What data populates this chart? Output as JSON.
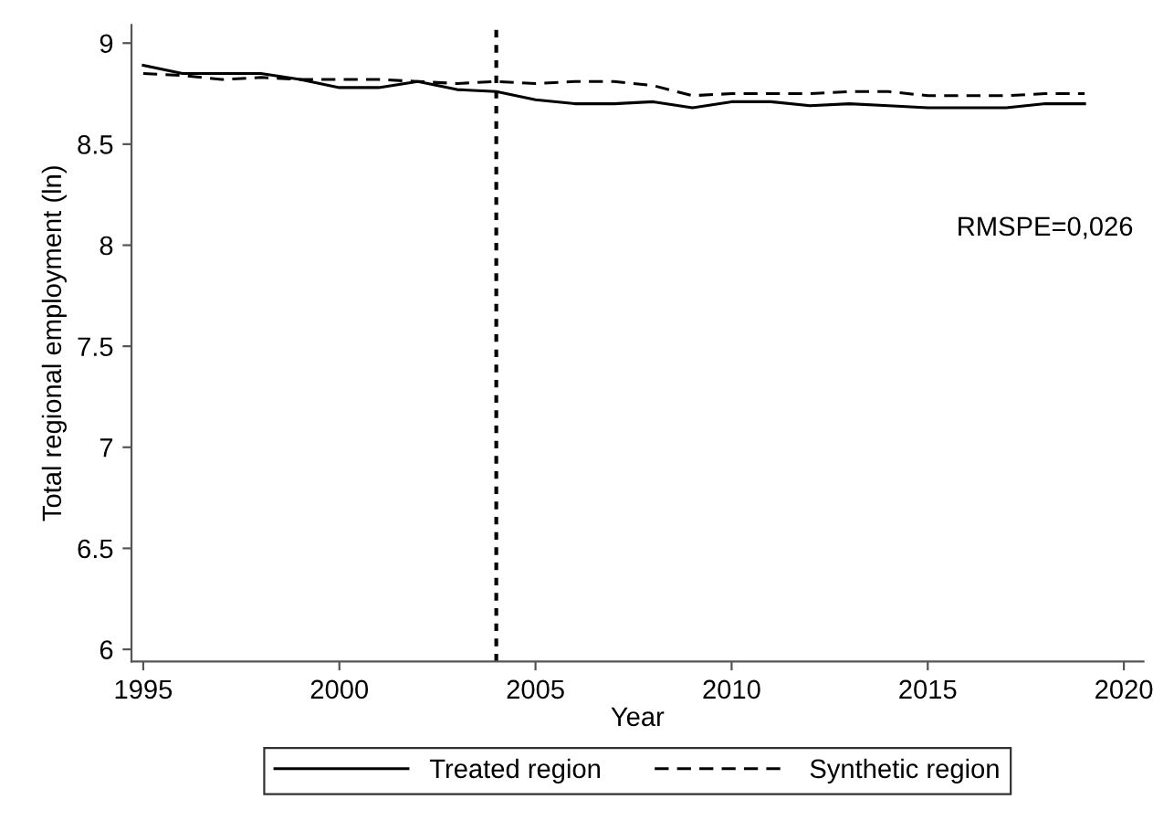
{
  "chart_data": {
    "type": "line",
    "xlabel": "Year",
    "ylabel": "Total regional employment (ln)",
    "x": [
      1995,
      1996,
      1997,
      1998,
      1999,
      2000,
      2001,
      2002,
      2003,
      2004,
      2005,
      2006,
      2007,
      2008,
      2009,
      2010,
      2011,
      2012,
      2013,
      2014,
      2015,
      2016,
      2017,
      2018,
      2019
    ],
    "series": [
      {
        "name": "Treated region",
        "color": "#000000",
        "line_style": "solid",
        "values": [
          8.89,
          8.85,
          8.85,
          8.85,
          8.82,
          8.78,
          8.78,
          8.81,
          8.77,
          8.76,
          8.72,
          8.7,
          8.7,
          8.71,
          8.68,
          8.71,
          8.71,
          8.69,
          8.7,
          8.69,
          8.68,
          8.68,
          8.68,
          8.7,
          8.7
        ]
      },
      {
        "name": "Synthetic region",
        "color": "#000000",
        "line_style": "dashed",
        "values": [
          8.85,
          8.84,
          8.82,
          8.83,
          8.82,
          8.82,
          8.82,
          8.81,
          8.8,
          8.81,
          8.8,
          8.81,
          8.81,
          8.79,
          8.74,
          8.75,
          8.75,
          8.75,
          8.76,
          8.76,
          8.74,
          8.74,
          8.74,
          8.75,
          8.75
        ]
      }
    ],
    "xlim": [
      1994.7,
      2020.5
    ],
    "xticks": [
      1995,
      2000,
      2005,
      2010,
      2015,
      2020
    ],
    "ylim": [
      5.94,
      9.09
    ],
    "yticks": [
      6,
      6.5,
      7,
      7.5,
      8,
      8.5,
      9
    ],
    "ref_lines": [
      {
        "axis": "x",
        "value": 2004,
        "color": "#000000",
        "line_style": "dotted"
      }
    ],
    "annotations": [
      "RMSPE=0,026"
    ],
    "legend": "bottom",
    "grid": false
  }
}
